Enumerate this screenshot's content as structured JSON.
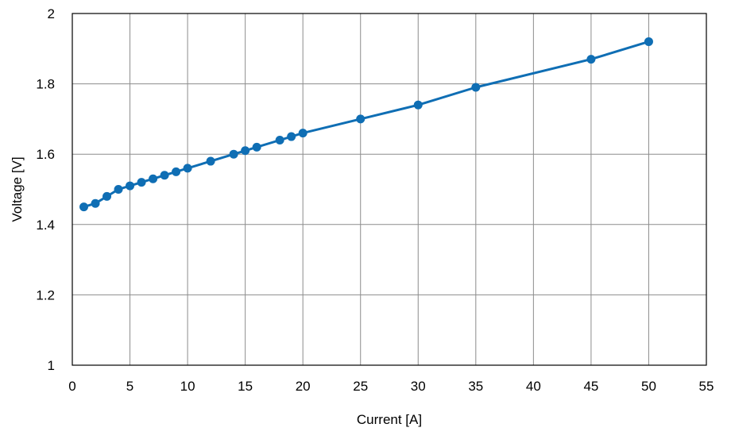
{
  "chart_data": {
    "type": "line",
    "title": "",
    "xlabel": "Current [A]",
    "ylabel": "Voltage [V]",
    "xlim": [
      0,
      55
    ],
    "ylim": [
      1,
      2
    ],
    "xticks": [
      0,
      5,
      10,
      15,
      20,
      25,
      30,
      35,
      40,
      45,
      50,
      55
    ],
    "yticks": [
      1,
      1.2,
      1.4,
      1.6,
      1.8,
      2
    ],
    "ytick_labels": [
      "1",
      "1.2",
      "1.4",
      "1.6",
      "1.8",
      "2"
    ],
    "grid": true,
    "legend": "none",
    "series": [
      {
        "color": "#0f6eb4",
        "marker": "circle",
        "x": [
          1,
          2,
          3,
          4,
          5,
          6,
          7,
          8,
          9,
          10,
          12,
          14,
          15,
          16,
          18,
          19,
          20,
          25,
          30,
          35,
          45,
          50
        ],
        "y": [
          1.45,
          1.46,
          1.48,
          1.5,
          1.51,
          1.52,
          1.53,
          1.54,
          1.55,
          1.56,
          1.58,
          1.6,
          1.61,
          1.62,
          1.64,
          1.65,
          1.66,
          1.7,
          1.74,
          1.79,
          1.87,
          1.92
        ]
      }
    ]
  }
}
